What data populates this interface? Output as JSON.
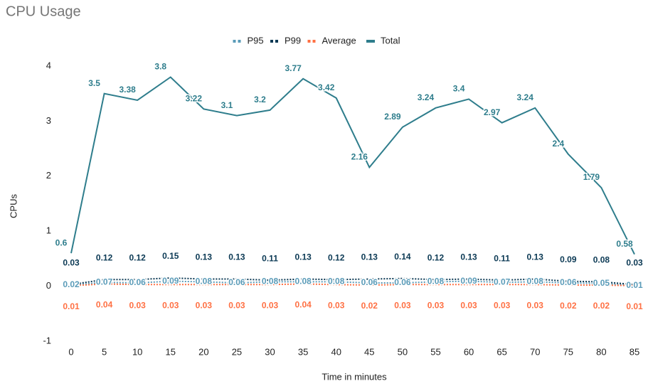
{
  "chart_data": {
    "type": "line",
    "title": "CPU Usage",
    "x_label": "Time in minutes",
    "y_label": "CPUs",
    "x": [
      0,
      5,
      10,
      15,
      20,
      25,
      30,
      35,
      40,
      45,
      50,
      55,
      60,
      65,
      70,
      75,
      80,
      85
    ],
    "xlim": [
      0,
      85
    ],
    "xticks": [
      0,
      5,
      10,
      15,
      20,
      25,
      30,
      35,
      40,
      45,
      50,
      55,
      60,
      65,
      70,
      75,
      80,
      85
    ],
    "ylim": [
      -1,
      4
    ],
    "yticks": [
      -1,
      0,
      1,
      2,
      3,
      4
    ],
    "grid": false,
    "legend": "top",
    "series": [
      {
        "name": "P95",
        "color": "#5a9bb8",
        "dashed": true,
        "values": [
          0.02,
          0.07,
          0.06,
          0.09,
          0.08,
          0.06,
          0.08,
          0.08,
          0.08,
          0.06,
          0.06,
          0.08,
          0.09,
          0.07,
          0.08,
          0.06,
          0.05,
          0.01
        ]
      },
      {
        "name": "P99",
        "color": "#0b3954",
        "dashed": true,
        "values": [
          0.03,
          0.12,
          0.12,
          0.15,
          0.13,
          0.13,
          0.11,
          0.13,
          0.12,
          0.13,
          0.14,
          0.12,
          0.13,
          0.11,
          0.13,
          0.09,
          0.08,
          0.03
        ]
      },
      {
        "name": "Average",
        "color": "#ff7043",
        "dashed": true,
        "values": [
          0.01,
          0.04,
          0.03,
          0.03,
          0.03,
          0.03,
          0.03,
          0.04,
          0.03,
          0.02,
          0.03,
          0.03,
          0.03,
          0.03,
          0.03,
          0.02,
          0.02,
          0.01
        ]
      },
      {
        "name": "Total",
        "color": "#2e7d8c",
        "dashed": false,
        "values": [
          0.6,
          3.5,
          3.38,
          3.8,
          3.22,
          3.1,
          3.2,
          3.77,
          3.42,
          2.16,
          2.89,
          3.24,
          3.4,
          2.97,
          3.24,
          2.4,
          1.79,
          0.58
        ]
      }
    ]
  }
}
